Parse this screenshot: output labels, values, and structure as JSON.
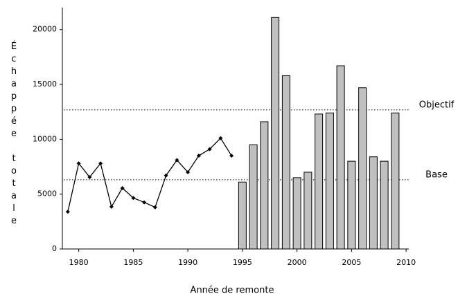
{
  "chart_data": {
    "type": "combo",
    "xlabel": "Année de remonte",
    "ylabel": "Échappée totale",
    "xlim": [
      1978.5,
      2010.5
    ],
    "xticks": [
      1980,
      1985,
      1990,
      1995,
      2000,
      2005,
      2010
    ],
    "ylim": [
      0,
      22000
    ],
    "yticks": [
      0,
      5000,
      10000,
      15000,
      20000
    ],
    "series": [
      {
        "type": "line",
        "color": "#000000",
        "x": [
          1979,
          1980,
          1981,
          1982,
          1983,
          1984,
          1985,
          1986,
          1987,
          1988,
          1989,
          1990,
          1991,
          1992,
          1993,
          1994
        ],
        "values": [
          3400,
          7800,
          6550,
          7800,
          3850,
          5550,
          4650,
          4250,
          3800,
          6700,
          8100,
          7000,
          8500,
          9100,
          10100,
          8500
        ]
      },
      {
        "type": "bar",
        "color": "#c0c0c0",
        "x": [
          1995,
          1996,
          1997,
          1998,
          1999,
          2000,
          2001,
          2002,
          2003,
          2004,
          2005,
          2006,
          2007,
          2008,
          2009
        ],
        "values": [
          6100,
          9500,
          11600,
          21100,
          15800,
          6500,
          7000,
          12300,
          12400,
          16700,
          8000,
          14700,
          8400,
          8000,
          12400
        ]
      }
    ],
    "annotations": [
      {
        "label": "Objectif",
        "value": 12680
      },
      {
        "label": "Base",
        "value": 6310
      }
    ]
  }
}
